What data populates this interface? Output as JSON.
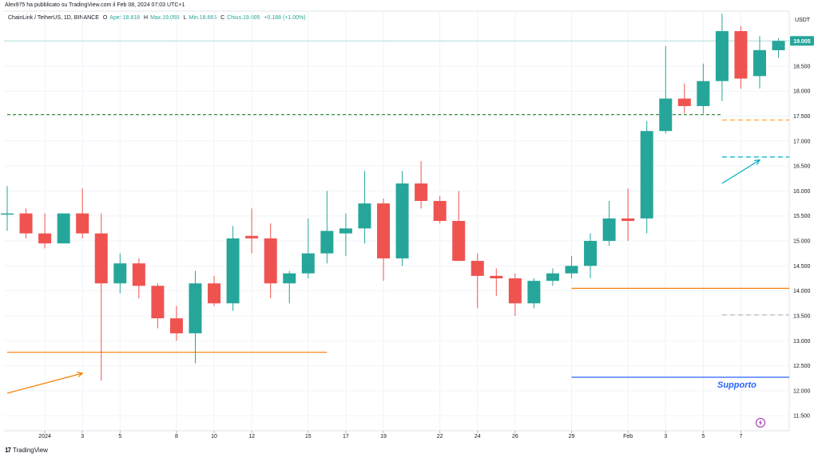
{
  "header": {
    "published": "Alex975 ha pubblicato su TradingView.com il Feb 08, 2024 07:03 UTC+1"
  },
  "symbol_bar": {
    "name": "ChainLink / TetherUS, 1D, BINANCE",
    "open_label": "O",
    "open_text": "Aper.18.818",
    "high_label": "H",
    "high_text": "Max.19.056",
    "low_label": "L",
    "low_text": "Min.18.665",
    "close_label": "C",
    "close_text": "Chius.19.005",
    "change_text": "+0.188 (+1.00%)"
  },
  "footer": {
    "brand": "TradingView",
    "logo_icon": "tradingview-logo-icon"
  },
  "colors": {
    "up": "#26a69a",
    "down": "#ef5350",
    "grid": "#f0f3fa",
    "support_line": "#2962ff",
    "orange": "#f57c00",
    "green_dash": "#388e3c",
    "yellow_dash": "#f9a825",
    "teal_dash": "#00acc1",
    "gray_dash": "#bdbdbd",
    "text": "#131722"
  },
  "chart_data": {
    "type": "candlestick",
    "currency_label": "USDT",
    "last_price_label": "19.005",
    "ylim": [
      11.2,
      19.6
    ],
    "yticks": [
      "11.500",
      "12.000",
      "12.500",
      "13.000",
      "13.500",
      "14.000",
      "14.500",
      "15.000",
      "15.500",
      "16.000",
      "16.500",
      "17.000",
      "17.500",
      "18.000",
      "18.500",
      "19.000"
    ],
    "x_tick_labels": [
      {
        "date": "2024-01-01",
        "label": "2024"
      },
      {
        "date": "2024-01-03",
        "label": "3"
      },
      {
        "date": "2024-01-05",
        "label": "5"
      },
      {
        "date": "2024-01-08",
        "label": "8"
      },
      {
        "date": "2024-01-10",
        "label": "10"
      },
      {
        "date": "2024-01-12",
        "label": "12"
      },
      {
        "date": "2024-01-15",
        "label": "15"
      },
      {
        "date": "2024-01-17",
        "label": "17"
      },
      {
        "date": "2024-01-19",
        "label": "19"
      },
      {
        "date": "2024-01-22",
        "label": "22"
      },
      {
        "date": "2024-01-24",
        "label": "24"
      },
      {
        "date": "2024-01-26",
        "label": "26"
      },
      {
        "date": "2024-01-29",
        "label": "29"
      },
      {
        "date": "2024-02-01",
        "label": "Feb"
      },
      {
        "date": "2024-02-03",
        "label": "3"
      },
      {
        "date": "2024-02-05",
        "label": "5"
      },
      {
        "date": "2024-02-07",
        "label": "7"
      }
    ],
    "candles": [
      {
        "date": "2023-12-30",
        "o": 15.55,
        "h": 16.1,
        "l": 15.2,
        "c": 15.55
      },
      {
        "date": "2023-12-31",
        "o": 15.55,
        "h": 15.65,
        "l": 15.05,
        "c": 15.15
      },
      {
        "date": "2024-01-01",
        "o": 15.15,
        "h": 15.55,
        "l": 14.85,
        "c": 14.95
      },
      {
        "date": "2024-01-02",
        "o": 14.95,
        "h": 15.55,
        "l": 14.95,
        "c": 15.55
      },
      {
        "date": "2024-01-03",
        "o": 15.55,
        "h": 16.05,
        "l": 15.05,
        "c": 15.15
      },
      {
        "date": "2024-01-04",
        "o": 15.15,
        "h": 15.55,
        "l": 12.2,
        "c": 14.15
      },
      {
        "date": "2024-01-05",
        "o": 14.15,
        "h": 14.75,
        "l": 13.95,
        "c": 14.55
      },
      {
        "date": "2024-01-06",
        "o": 14.55,
        "h": 14.65,
        "l": 13.85,
        "c": 14.1
      },
      {
        "date": "2024-01-07",
        "o": 14.1,
        "h": 14.15,
        "l": 13.25,
        "c": 13.45
      },
      {
        "date": "2024-01-08",
        "o": 13.45,
        "h": 13.7,
        "l": 13.0,
        "c": 13.15
      },
      {
        "date": "2024-01-09",
        "o": 13.15,
        "h": 14.4,
        "l": 12.55,
        "c": 14.15
      },
      {
        "date": "2024-01-10",
        "o": 14.15,
        "h": 14.3,
        "l": 13.7,
        "c": 13.75
      },
      {
        "date": "2024-01-11",
        "o": 13.75,
        "h": 15.3,
        "l": 13.6,
        "c": 15.05
      },
      {
        "date": "2024-01-12",
        "o": 15.1,
        "h": 15.65,
        "l": 14.75,
        "c": 15.05
      },
      {
        "date": "2024-01-13",
        "o": 15.05,
        "h": 15.35,
        "l": 13.85,
        "c": 14.15
      },
      {
        "date": "2024-01-14",
        "o": 14.15,
        "h": 14.4,
        "l": 13.75,
        "c": 14.35
      },
      {
        "date": "2024-01-15",
        "o": 14.35,
        "h": 15.45,
        "l": 14.25,
        "c": 14.75
      },
      {
        "date": "2024-01-16",
        "o": 14.75,
        "h": 16.0,
        "l": 14.55,
        "c": 15.2
      },
      {
        "date": "2024-01-17",
        "o": 15.15,
        "h": 15.55,
        "l": 14.7,
        "c": 15.25
      },
      {
        "date": "2024-01-18",
        "o": 15.25,
        "h": 16.4,
        "l": 14.95,
        "c": 15.75
      },
      {
        "date": "2024-01-19",
        "o": 15.75,
        "h": 15.85,
        "l": 14.2,
        "c": 14.65
      },
      {
        "date": "2024-01-20",
        "o": 14.65,
        "h": 16.4,
        "l": 14.5,
        "c": 16.15
      },
      {
        "date": "2024-01-21",
        "o": 16.15,
        "h": 16.6,
        "l": 15.65,
        "c": 15.8
      },
      {
        "date": "2024-01-22",
        "o": 15.8,
        "h": 15.9,
        "l": 15.35,
        "c": 15.4
      },
      {
        "date": "2024-01-23",
        "o": 15.4,
        "h": 16.0,
        "l": 14.6,
        "c": 14.6
      },
      {
        "date": "2024-01-24",
        "o": 14.6,
        "h": 14.75,
        "l": 13.65,
        "c": 14.3
      },
      {
        "date": "2024-01-25",
        "o": 14.3,
        "h": 14.45,
        "l": 13.9,
        "c": 14.25
      },
      {
        "date": "2024-01-26",
        "o": 14.25,
        "h": 14.35,
        "l": 13.5,
        "c": 13.75
      },
      {
        "date": "2024-01-27",
        "o": 13.75,
        "h": 14.25,
        "l": 13.65,
        "c": 14.2
      },
      {
        "date": "2024-01-28",
        "o": 14.2,
        "h": 14.45,
        "l": 14.1,
        "c": 14.35
      },
      {
        "date": "2024-01-29",
        "o": 14.35,
        "h": 14.7,
        "l": 14.25,
        "c": 14.5
      },
      {
        "date": "2024-01-30",
        "o": 14.5,
        "h": 15.15,
        "l": 14.25,
        "c": 15.0
      },
      {
        "date": "2024-01-31",
        "o": 15.0,
        "h": 15.8,
        "l": 14.9,
        "c": 15.45
      },
      {
        "date": "2024-02-01",
        "o": 15.45,
        "h": 16.05,
        "l": 15.0,
        "c": 15.4
      },
      {
        "date": "2024-02-02",
        "o": 15.45,
        "h": 17.4,
        "l": 15.15,
        "c": 17.2
      },
      {
        "date": "2024-02-03",
        "o": 17.2,
        "h": 18.9,
        "l": 17.15,
        "c": 17.85
      },
      {
        "date": "2024-02-04",
        "o": 17.85,
        "h": 18.15,
        "l": 17.55,
        "c": 17.7
      },
      {
        "date": "2024-02-05",
        "o": 17.7,
        "h": 18.55,
        "l": 17.55,
        "c": 18.2
      },
      {
        "date": "2024-02-06",
        "o": 18.2,
        "h": 19.55,
        "l": 17.8,
        "c": 19.2
      },
      {
        "date": "2024-02-07",
        "o": 19.2,
        "h": 19.3,
        "l": 18.05,
        "c": 18.25
      },
      {
        "date": "2024-02-08",
        "o": 18.3,
        "h": 19.1,
        "l": 18.05,
        "c": 18.82
      },
      {
        "date": "2024-02-09",
        "o": 18.818,
        "h": 19.056,
        "l": 18.665,
        "c": 19.005
      }
    ],
    "drawings": {
      "support_label": "Supporto",
      "horizontal_levels": [
        {
          "name": "green-dashed-resistance",
          "price": 17.53,
          "color": "#388e3c",
          "style": "dashed",
          "from": "2023-12-30",
          "to": "2024-02-06"
        },
        {
          "name": "yellow-dashed-level",
          "price": 17.42,
          "color": "#f9a825",
          "style": "dashed",
          "from": "2024-02-06",
          "to": "2024-02-10"
        },
        {
          "name": "teal-dashed-level",
          "price": 16.68,
          "color": "#00acc1",
          "style": "dashed",
          "from": "2024-02-06",
          "to": "2024-02-10"
        },
        {
          "name": "orange-level-right",
          "price": 14.05,
          "color": "#f57c00",
          "style": "solid",
          "from": "2024-01-29",
          "to": "2024-02-10"
        },
        {
          "name": "gray-dashed-level",
          "price": 13.52,
          "color": "#bdbdbd",
          "style": "dashed",
          "from": "2024-02-06",
          "to": "2024-02-10"
        },
        {
          "name": "orange-level-left",
          "price": 12.77,
          "color": "#f57c00",
          "style": "solid",
          "from": "2023-12-30",
          "to": "2024-01-16"
        },
        {
          "name": "support-line",
          "price": 12.27,
          "color": "#2962ff",
          "style": "solid",
          "from": "2024-01-29",
          "to": "2024-02-10"
        }
      ],
      "arrows": [
        {
          "name": "orange-arrow",
          "color": "#f57c00",
          "from": {
            "date": "2023-12-30",
            "price": 11.95
          },
          "to": {
            "date": "2024-01-03",
            "price": 12.35
          }
        },
        {
          "name": "teal-arrow",
          "color": "#00acc1",
          "from": {
            "date": "2024-02-06",
            "price": 16.15
          },
          "to": {
            "date": "2024-02-08",
            "price": 16.62
          }
        }
      ]
    }
  }
}
